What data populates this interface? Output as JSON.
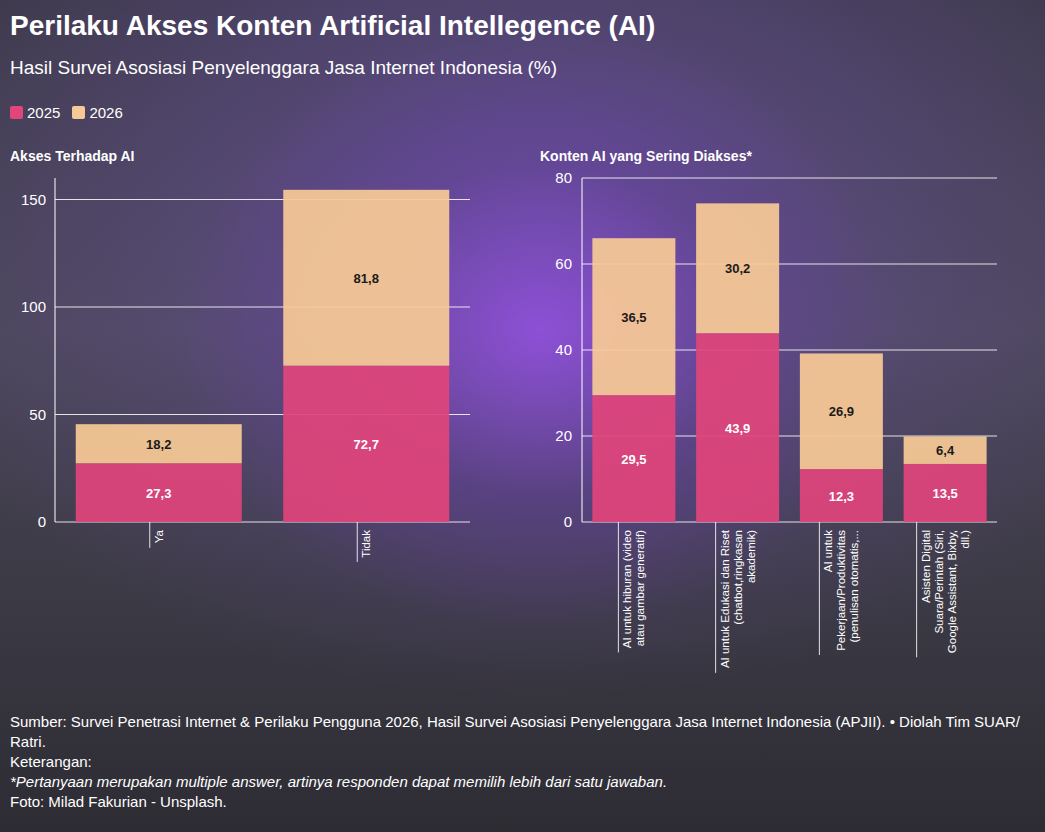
{
  "header": {
    "title": "Perilaku Akses Konten Artificial Intellegence (AI)",
    "subtitle": "Hasil Survei Asosiasi Penyelenggara Jasa Internet Indonesia (%)"
  },
  "chart_data": [
    {
      "type": "bar",
      "title": "Akses Terhadap AI",
      "stacked": true,
      "data_labels": true,
      "grid": true,
      "legend": "top-left",
      "categories": [
        "Ya",
        "Tidak"
      ],
      "series": [
        {
          "name": "2025",
          "color": "#e0457b",
          "values": [
            27.3,
            72.7
          ],
          "value_labels": [
            "27,3",
            "72,7"
          ]
        },
        {
          "name": "2026",
          "color": "#f7c996",
          "values": [
            18.2,
            81.8
          ],
          "value_labels": [
            "18,2",
            "81,8"
          ]
        }
      ],
      "ylim": [
        0,
        160
      ],
      "yticks": [
        0,
        50,
        100,
        150
      ]
    },
    {
      "type": "bar",
      "title": "Konten AI yang Sering Diakses*",
      "stacked": true,
      "data_labels": true,
      "grid": true,
      "categories": [
        "AI untuk hiburan (video atau gambar generatif)",
        "AI untuk Edukasi dan Riset (chatbot,ringkasan akademik)",
        "AI untuk Pekerjaan/Produktivitas (penulisan otomatis,...",
        "Asisten Digital Suara/Perintah (Siri, Google Assistant, Bixby, dll.)"
      ],
      "series": [
        {
          "color": "#e0457b",
          "values": [
            29.5,
            43.9,
            12.3,
            13.5
          ],
          "value_labels": [
            "29,5",
            "43,9",
            "12,3",
            "13,5"
          ]
        },
        {
          "color": "#f7c996",
          "values": [
            36.5,
            30.2,
            26.9,
            6.4
          ],
          "value_labels": [
            "36,5",
            "30,2",
            "26,9",
            "6,4"
          ]
        }
      ],
      "ylim": [
        0,
        80
      ],
      "yticks": [
        0,
        20,
        40,
        60,
        80
      ]
    }
  ],
  "footer": {
    "source": "Sumber: Survei Penetrasi Internet & Perilaku Pengguna 2026, Hasil Survei Asosiasi Penyelenggara Jasa Internet Indonesia (APJII). • Diolah Tim SUAR/ Ratri.",
    "note_heading": "Keterangan:",
    "note": "*Pertanyaan merupakan multiple answer, artinya responden dapat memilih lebih dari satu jawaban.",
    "photo_credit": "Foto: Milad Fakurian - Unsplash."
  }
}
